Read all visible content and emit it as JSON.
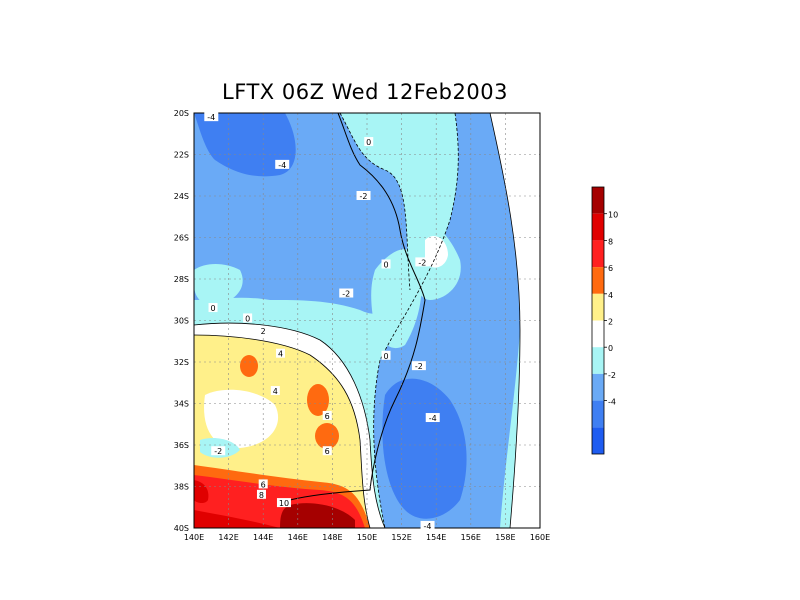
{
  "title": "LFTX 06Z Wed 12Feb2003",
  "lat_ticks": [
    "20S",
    "22S",
    "24S",
    "26S",
    "28S",
    "30S",
    "32S",
    "34S",
    "36S",
    "38S",
    "40S"
  ],
  "lon_ticks": [
    "140E",
    "142E",
    "144E",
    "146E",
    "148E",
    "150E",
    "152E",
    "154E",
    "156E",
    "158E",
    "160E"
  ],
  "colorbar": {
    "labels": [
      "10",
      "8",
      "6",
      "4",
      "2",
      "0",
      "-2",
      "-4"
    ],
    "colors": [
      "#a50000",
      "#e00000",
      "#ff2020",
      "#ff6a10",
      "#fff08a",
      "#ffffff",
      "#a8f5f5",
      "#6aaaf6",
      "#3f7ff2",
      "#1e5cf0"
    ]
  },
  "contour_labels": [
    {
      "text": "-4",
      "lon": 141.0,
      "lat": 20.2
    },
    {
      "text": "-4",
      "lon": 145.1,
      "lat": 22.5
    },
    {
      "text": "0",
      "lon": 150.1,
      "lat": 21.4
    },
    {
      "text": "-2",
      "lon": 149.8,
      "lat": 24.0
    },
    {
      "text": "-2",
      "lon": 153.2,
      "lat": 27.2
    },
    {
      "text": "0",
      "lon": 151.1,
      "lat": 27.3
    },
    {
      "text": "-2",
      "lon": 148.8,
      "lat": 28.7
    },
    {
      "text": "0",
      "lon": 141.1,
      "lat": 29.4
    },
    {
      "text": "0",
      "lon": 143.1,
      "lat": 29.9
    },
    {
      "text": "2",
      "lon": 144.0,
      "lat": 30.5
    },
    {
      "text": "4",
      "lon": 145.0,
      "lat": 31.6
    },
    {
      "text": "0",
      "lon": 151.1,
      "lat": 31.7
    },
    {
      "text": "-2",
      "lon": 153.0,
      "lat": 32.2
    },
    {
      "text": "4",
      "lon": 144.7,
      "lat": 33.4
    },
    {
      "text": "6",
      "lon": 147.7,
      "lat": 34.6
    },
    {
      "text": "-4",
      "lon": 153.8,
      "lat": 34.7
    },
    {
      "text": "-2",
      "lon": 141.4,
      "lat": 36.3
    },
    {
      "text": "6",
      "lon": 147.7,
      "lat": 36.3
    },
    {
      "text": "6",
      "lon": 144.0,
      "lat": 37.9
    },
    {
      "text": "8",
      "lon": 143.9,
      "lat": 38.4
    },
    {
      "text": "10",
      "lon": 145.2,
      "lat": 38.8
    },
    {
      "text": "-4",
      "lon": 153.5,
      "lat": 39.9
    }
  ]
}
